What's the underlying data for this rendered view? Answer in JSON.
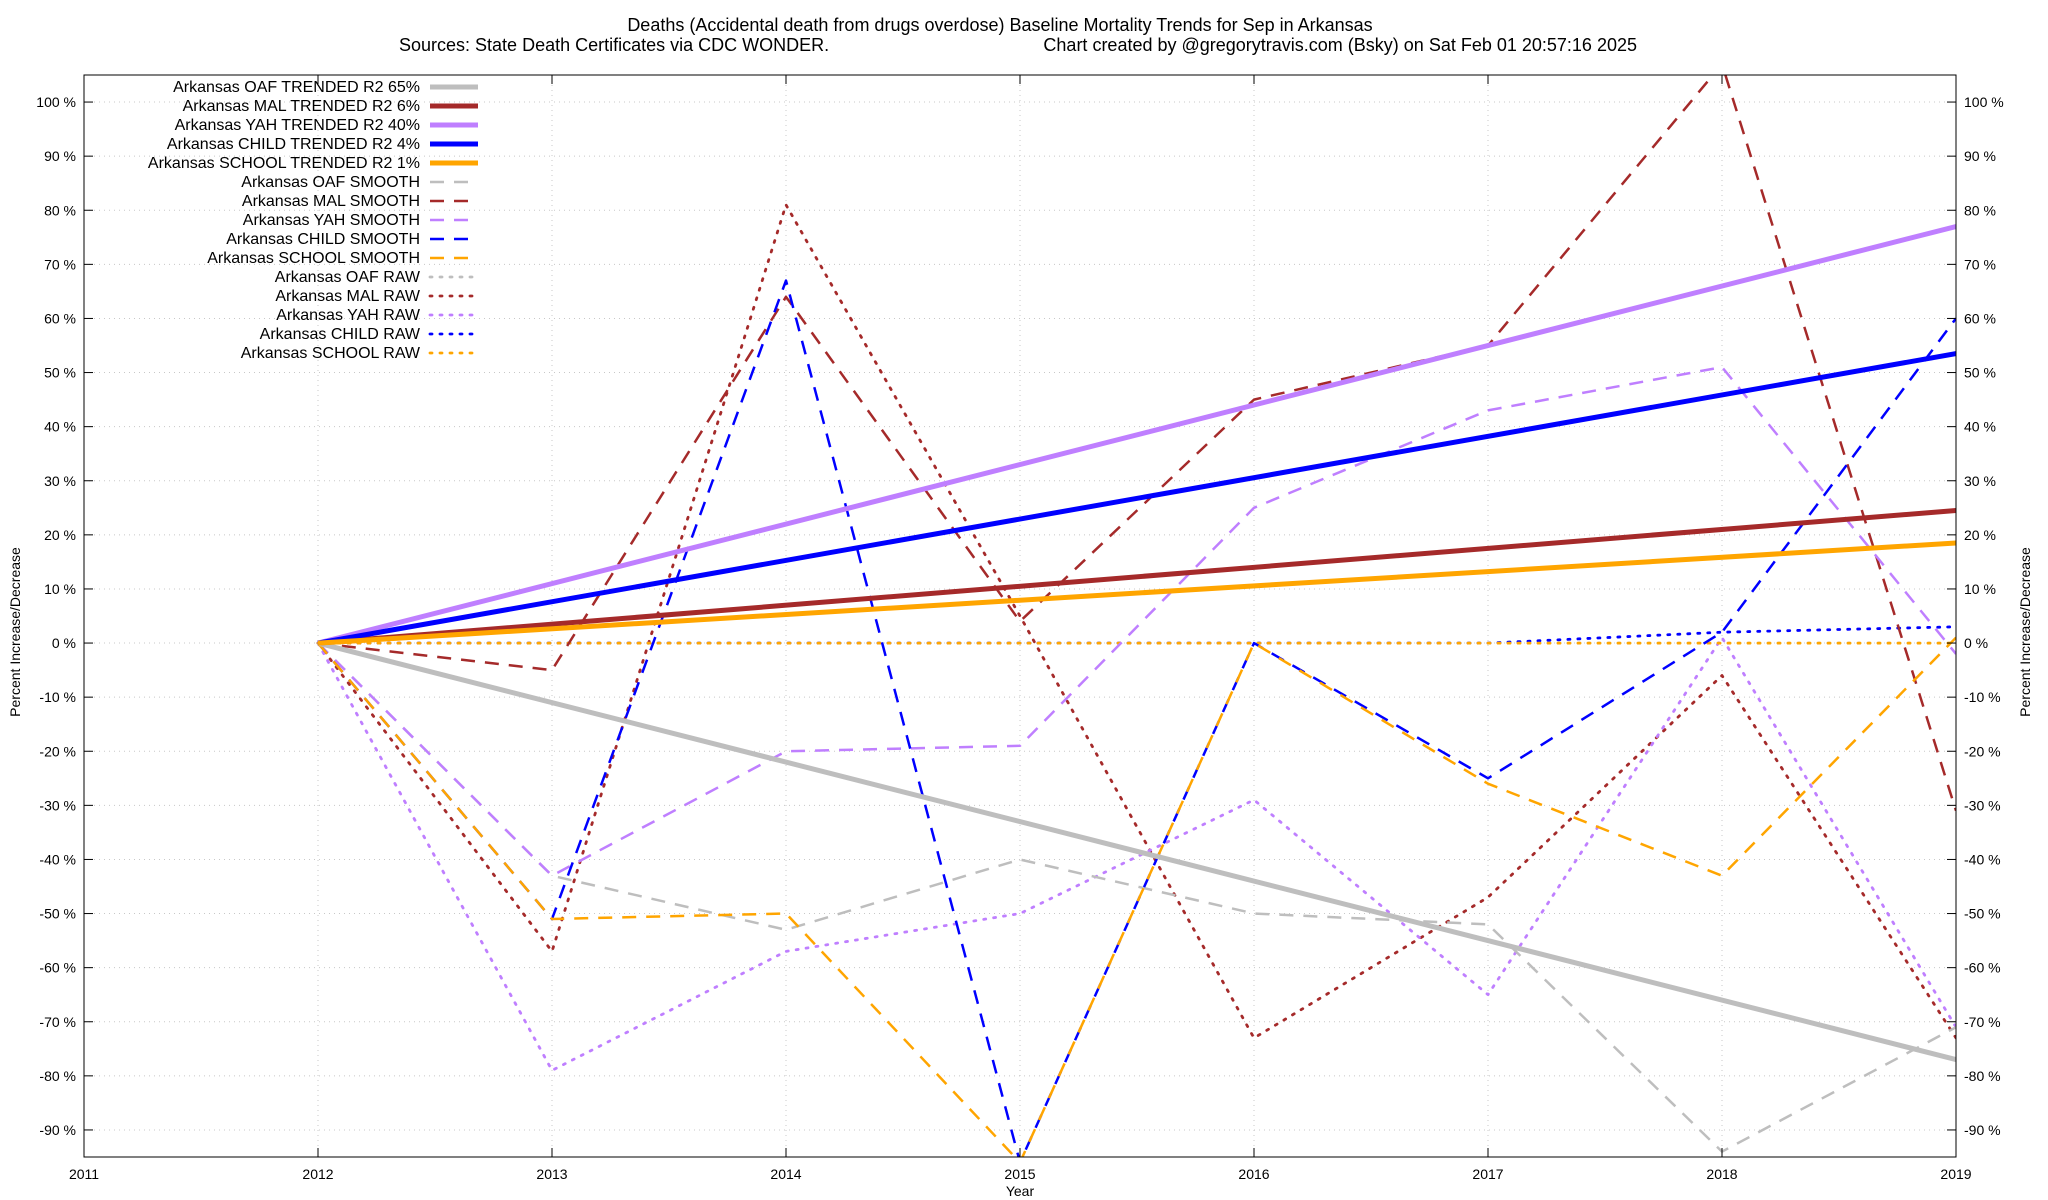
{
  "chart_data": {
    "type": "line",
    "title": "Deaths (Accidental death from drugs overdose)  Baseline Mortality Trends for Sep in Arkansas",
    "subtitle_left": "Sources: State Death Certificates via CDC WONDER.",
    "subtitle_right": "Chart created by @gregorytravis.com (Bsky) on Sat Feb 01 20:57:16 2025",
    "xlabel": "Year",
    "ylabel": "Percent Increase/Decrease",
    "y2label": "Percent Increase/Decrease",
    "xlim": [
      2011,
      2019
    ],
    "ylim": [
      -95,
      105
    ],
    "x_ticks": [
      "2011",
      "2012",
      "2013",
      "2014",
      "2015",
      "2016",
      "2017",
      "2018",
      "2019"
    ],
    "y_ticks": [
      {
        "v": 100,
        "label": "100 %"
      },
      {
        "v": 90,
        "label": "90 %"
      },
      {
        "v": 80,
        "label": "80 %"
      },
      {
        "v": 70,
        "label": "70 %"
      },
      {
        "v": 60,
        "label": "60 %"
      },
      {
        "v": 50,
        "label": "50 %"
      },
      {
        "v": 40,
        "label": "40 %"
      },
      {
        "v": 30,
        "label": "30 %"
      },
      {
        "v": 20,
        "label": "20 %"
      },
      {
        "v": 10,
        "label": "10 %"
      },
      {
        "v": 0,
        "label": "0 %"
      },
      {
        "v": -10,
        "label": "-10 %"
      },
      {
        "v": -20,
        "label": "-20 %"
      },
      {
        "v": -30,
        "label": "-30 %"
      },
      {
        "v": -40,
        "label": "-40 %"
      },
      {
        "v": -50,
        "label": "-50 %"
      },
      {
        "v": -60,
        "label": "-60 %"
      },
      {
        "v": -70,
        "label": "-70 %"
      },
      {
        "v": -80,
        "label": "-80 %"
      },
      {
        "v": -90,
        "label": "-90 %"
      }
    ],
    "grid": true,
    "legend_position": "top-left",
    "colors": {
      "OAF": "#bebebe",
      "MAL": "#a52a2a",
      "YAH": "#bf7fff",
      "CHILD": "#0000ff",
      "SCHOOL": "#ffa500"
    },
    "series": [
      {
        "name": "Arkansas OAF TRENDED R2  65%",
        "group": "OAF",
        "kind": "trend",
        "x": [
          2012,
          2019
        ],
        "y": [
          0,
          -77
        ]
      },
      {
        "name": "Arkansas MAL TRENDED R2  6%",
        "group": "MAL",
        "kind": "trend",
        "x": [
          2012,
          2019
        ],
        "y": [
          0,
          24.5
        ]
      },
      {
        "name": "Arkansas YAH TRENDED R2  40%",
        "group": "YAH",
        "kind": "trend",
        "x": [
          2012,
          2019
        ],
        "y": [
          0,
          77
        ]
      },
      {
        "name": "Arkansas CHILD TRENDED R2  4%",
        "group": "CHILD",
        "kind": "trend",
        "x": [
          2012,
          2019
        ],
        "y": [
          0,
          53.5
        ]
      },
      {
        "name": "Arkansas SCHOOL TRENDED R2  1%",
        "group": "SCHOOL",
        "kind": "trend",
        "x": [
          2012,
          2019
        ],
        "y": [
          0,
          18.5
        ]
      },
      {
        "name": "Arkansas OAF SMOOTH",
        "group": "OAF",
        "kind": "smooth",
        "x": [
          2012,
          2013,
          2014,
          2015,
          2016,
          2017,
          2018,
          2019
        ],
        "y": [
          0,
          -43,
          -53,
          -40,
          -50,
          -52,
          -94,
          -71
        ]
      },
      {
        "name": "Arkansas MAL SMOOTH",
        "group": "MAL",
        "kind": "smooth",
        "x": [
          2012,
          2013,
          2014,
          2015,
          2016,
          2017,
          2018,
          2019
        ],
        "y": [
          0,
          -5,
          64,
          4,
          45,
          55,
          107,
          -31
        ]
      },
      {
        "name": "Arkansas YAH SMOOTH",
        "group": "YAH",
        "kind": "smooth",
        "x": [
          2012,
          2013,
          2014,
          2015,
          2016,
          2017,
          2018,
          2019
        ],
        "y": [
          0,
          -43,
          -20,
          -19,
          25,
          43,
          51,
          -2
        ]
      },
      {
        "name": "Arkansas CHILD SMOOTH",
        "group": "CHILD",
        "kind": "smooth",
        "x": [
          2012,
          2013,
          2014,
          2015,
          2016,
          2017,
          2018,
          2019
        ],
        "y": [
          0,
          -51,
          67,
          -96,
          0,
          -25,
          2,
          60
        ]
      },
      {
        "name": "Arkansas SCHOOL SMOOTH",
        "group": "SCHOOL",
        "kind": "smooth",
        "x": [
          2012,
          2013,
          2014,
          2015,
          2016,
          2017,
          2018,
          2019
        ],
        "y": [
          0,
          -51,
          -50,
          -96,
          0,
          -26,
          -43,
          1
        ]
      },
      {
        "name": "Arkansas OAF RAW",
        "group": "OAF",
        "kind": "raw",
        "x": [
          2012,
          2013,
          2014,
          2015,
          2016,
          2017,
          2018,
          2019
        ],
        "y": [
          0,
          0,
          0,
          0,
          0,
          0,
          0,
          0
        ]
      },
      {
        "name": "Arkansas MAL RAW",
        "group": "MAL",
        "kind": "raw",
        "x": [
          2012,
          2013,
          2014,
          2015,
          2016,
          2017,
          2018,
          2019
        ],
        "y": [
          0,
          -57,
          81,
          5,
          -73,
          -47,
          -6,
          -73
        ]
      },
      {
        "name": "Arkansas YAH RAW",
        "group": "YAH",
        "kind": "raw",
        "x": [
          2012,
          2013,
          2014,
          2015,
          2016,
          2017,
          2018,
          2019
        ],
        "y": [
          0,
          -79,
          -57,
          -50,
          -29,
          -65,
          1,
          -71
        ]
      },
      {
        "name": "Arkansas CHILD RAW",
        "group": "CHILD",
        "kind": "raw",
        "x": [
          2012,
          2013,
          2014,
          2015,
          2016,
          2017,
          2018,
          2019
        ],
        "y": [
          0,
          0,
          0,
          0,
          0,
          0,
          2,
          3
        ]
      },
      {
        "name": "Arkansas SCHOOL RAW",
        "group": "SCHOOL",
        "kind": "raw",
        "x": [
          2012,
          2013,
          2014,
          2015,
          2016,
          2017,
          2018,
          2019
        ],
        "y": [
          0,
          0,
          0,
          0,
          0,
          0,
          0,
          0
        ]
      }
    ]
  }
}
